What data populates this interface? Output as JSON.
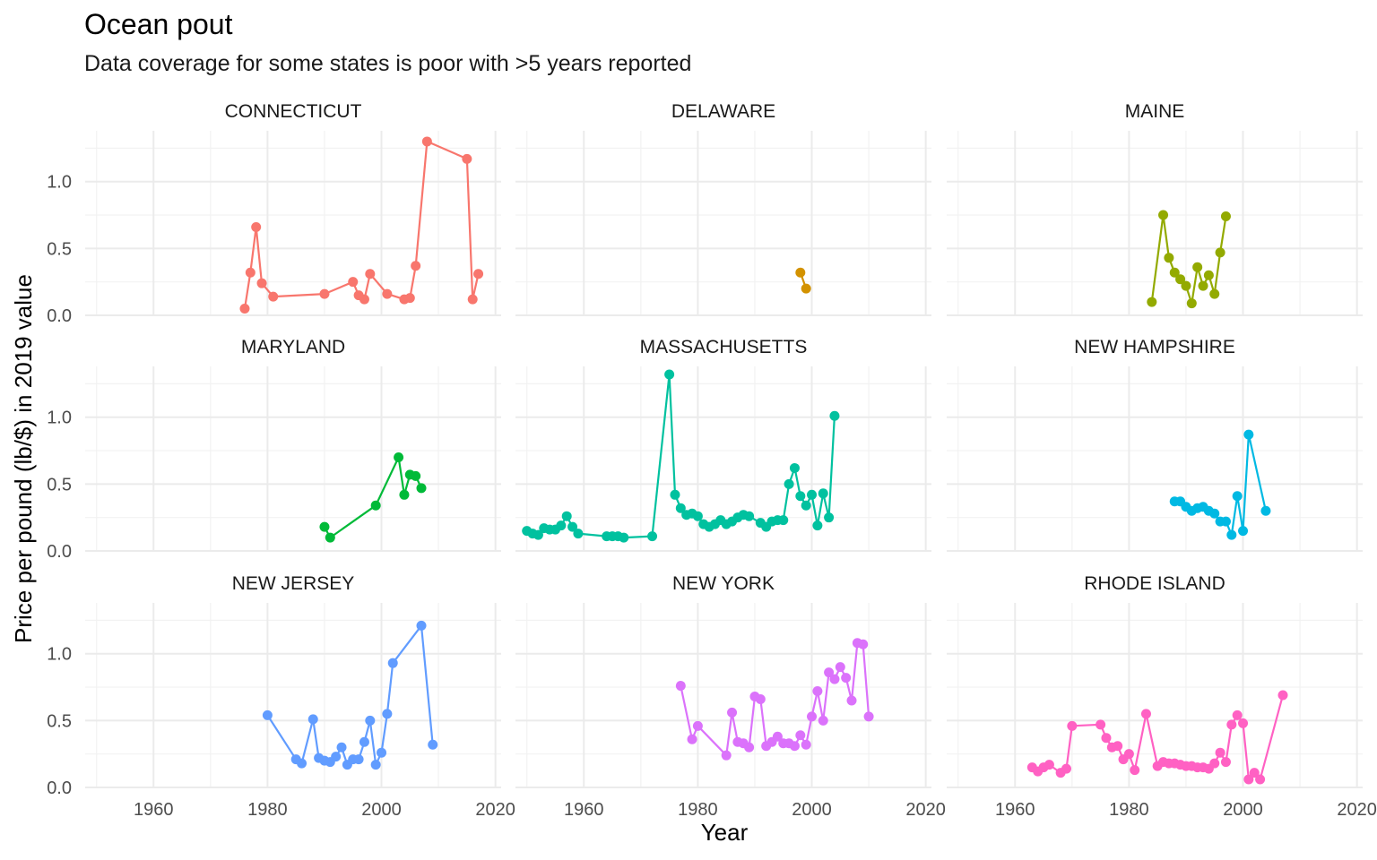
{
  "chart_data": {
    "type": "line",
    "title": "Ocean pout",
    "subtitle": "Data coverage for some states is poor with >5 years reported",
    "xlabel": "Year",
    "ylabel": "Price per pound (lb/$) in 2019 value",
    "xlim": [
      1948,
      2021
    ],
    "ylim": [
      0,
      1.38
    ],
    "x_ticks": [
      1960,
      1980,
      2000,
      2020
    ],
    "y_ticks": [
      0.0,
      0.5,
      1.0
    ],
    "y_tick_labels": [
      "0.0",
      "0.5",
      "1.0"
    ],
    "grid": true,
    "legend": "none",
    "panels": [
      {
        "name": "CONNECTICUT",
        "color": "#F8766D",
        "points": [
          [
            1976,
            0.05
          ],
          [
            1977,
            0.32
          ],
          [
            1978,
            0.66
          ],
          [
            1979,
            0.24
          ],
          [
            1981,
            0.14
          ],
          [
            1990,
            0.16
          ],
          [
            1995,
            0.25
          ],
          [
            1996,
            0.15
          ],
          [
            1997,
            0.12
          ],
          [
            1998,
            0.31
          ],
          [
            2001,
            0.16
          ],
          [
            2004,
            0.12
          ],
          [
            2005,
            0.13
          ],
          [
            2006,
            0.37
          ],
          [
            2008,
            1.3
          ],
          [
            2015,
            1.17
          ],
          [
            2016,
            0.12
          ],
          [
            2017,
            0.31
          ]
        ]
      },
      {
        "name": "DELAWARE",
        "color": "#D39200",
        "points": [
          [
            1998,
            0.32
          ],
          [
            1999,
            0.2
          ]
        ]
      },
      {
        "name": "MAINE",
        "color": "#93AA00",
        "points": [
          [
            1984,
            0.1
          ],
          [
            1986,
            0.75
          ],
          [
            1987,
            0.43
          ],
          [
            1988,
            0.32
          ],
          [
            1989,
            0.27
          ],
          [
            1990,
            0.22
          ],
          [
            1991,
            0.09
          ],
          [
            1992,
            0.36
          ],
          [
            1993,
            0.22
          ],
          [
            1994,
            0.3
          ],
          [
            1995,
            0.16
          ],
          [
            1996,
            0.47
          ],
          [
            1997,
            0.74
          ]
        ]
      },
      {
        "name": "MARYLAND",
        "color": "#00BA38",
        "points": [
          [
            1990,
            0.18
          ],
          [
            1991,
            0.1
          ],
          [
            1999,
            0.34
          ],
          [
            2003,
            0.7
          ],
          [
            2004,
            0.42
          ],
          [
            2005,
            0.57
          ],
          [
            2006,
            0.56
          ],
          [
            2007,
            0.47
          ]
        ]
      },
      {
        "name": "MASSACHUSETTS",
        "color": "#00C19F",
        "points": [
          [
            1950,
            0.15
          ],
          [
            1951,
            0.13
          ],
          [
            1952,
            0.12
          ],
          [
            1953,
            0.17
          ],
          [
            1954,
            0.16
          ],
          [
            1955,
            0.16
          ],
          [
            1956,
            0.19
          ],
          [
            1957,
            0.26
          ],
          [
            1958,
            0.18
          ],
          [
            1959,
            0.13
          ],
          [
            1964,
            0.11
          ],
          [
            1965,
            0.11
          ],
          [
            1966,
            0.11
          ],
          [
            1967,
            0.1
          ],
          [
            1972,
            0.11
          ],
          [
            1975,
            1.32
          ],
          [
            1976,
            0.42
          ],
          [
            1977,
            0.32
          ],
          [
            1978,
            0.27
          ],
          [
            1979,
            0.28
          ],
          [
            1980,
            0.26
          ],
          [
            1981,
            0.2
          ],
          [
            1982,
            0.18
          ],
          [
            1983,
            0.2
          ],
          [
            1984,
            0.23
          ],
          [
            1985,
            0.2
          ],
          [
            1986,
            0.22
          ],
          [
            1987,
            0.25
          ],
          [
            1988,
            0.27
          ],
          [
            1989,
            0.26
          ],
          [
            1991,
            0.21
          ],
          [
            1992,
            0.18
          ],
          [
            1993,
            0.22
          ],
          [
            1994,
            0.23
          ],
          [
            1995,
            0.23
          ],
          [
            1996,
            0.5
          ],
          [
            1997,
            0.62
          ],
          [
            1998,
            0.41
          ],
          [
            1999,
            0.34
          ],
          [
            2000,
            0.42
          ],
          [
            2001,
            0.19
          ],
          [
            2002,
            0.43
          ],
          [
            2003,
            0.25
          ],
          [
            2004,
            1.01
          ]
        ]
      },
      {
        "name": "NEW HAMPSHIRE",
        "color": "#00B9E3",
        "points": [
          [
            1988,
            0.37
          ],
          [
            1989,
            0.37
          ],
          [
            1990,
            0.33
          ],
          [
            1991,
            0.3
          ],
          [
            1992,
            0.32
          ],
          [
            1993,
            0.33
          ],
          [
            1994,
            0.3
          ],
          [
            1995,
            0.28
          ],
          [
            1996,
            0.22
          ],
          [
            1997,
            0.22
          ],
          [
            1998,
            0.12
          ],
          [
            1999,
            0.41
          ],
          [
            2000,
            0.15
          ],
          [
            2001,
            0.87
          ],
          [
            2004,
            0.3
          ]
        ]
      },
      {
        "name": "NEW JERSEY",
        "color": "#619CFF",
        "points": [
          [
            1980,
            0.54
          ],
          [
            1985,
            0.21
          ],
          [
            1986,
            0.18
          ],
          [
            1988,
            0.51
          ],
          [
            1989,
            0.22
          ],
          [
            1990,
            0.2
          ],
          [
            1991,
            0.19
          ],
          [
            1992,
            0.23
          ],
          [
            1993,
            0.3
          ],
          [
            1994,
            0.17
          ],
          [
            1995,
            0.21
          ],
          [
            1996,
            0.21
          ],
          [
            1997,
            0.34
          ],
          [
            1998,
            0.5
          ],
          [
            1999,
            0.17
          ],
          [
            2000,
            0.26
          ],
          [
            2001,
            0.55
          ],
          [
            2002,
            0.93
          ],
          [
            2007,
            1.21
          ],
          [
            2009,
            0.32
          ]
        ]
      },
      {
        "name": "NEW YORK",
        "color": "#DB72FB",
        "points": [
          [
            1977,
            0.76
          ],
          [
            1979,
            0.36
          ],
          [
            1980,
            0.46
          ],
          [
            1985,
            0.24
          ],
          [
            1986,
            0.56
          ],
          [
            1987,
            0.34
          ],
          [
            1988,
            0.33
          ],
          [
            1989,
            0.3
          ],
          [
            1990,
            0.68
          ],
          [
            1991,
            0.66
          ],
          [
            1992,
            0.31
          ],
          [
            1993,
            0.34
          ],
          [
            1994,
            0.38
          ],
          [
            1995,
            0.33
          ],
          [
            1996,
            0.33
          ],
          [
            1997,
            0.31
          ],
          [
            1998,
            0.39
          ],
          [
            1999,
            0.32
          ],
          [
            2000,
            0.53
          ],
          [
            2001,
            0.72
          ],
          [
            2002,
            0.5
          ],
          [
            2003,
            0.86
          ],
          [
            2004,
            0.81
          ],
          [
            2005,
            0.9
          ],
          [
            2006,
            0.82
          ],
          [
            2007,
            0.65
          ],
          [
            2008,
            1.08
          ],
          [
            2009,
            1.07
          ],
          [
            2010,
            0.53
          ]
        ]
      },
      {
        "name": "RHODE ISLAND",
        "color": "#FF61C3",
        "points": [
          [
            1963,
            0.15
          ],
          [
            1964,
            0.12
          ],
          [
            1965,
            0.15
          ],
          [
            1966,
            0.17
          ],
          [
            1968,
            0.11
          ],
          [
            1969,
            0.14
          ],
          [
            1970,
            0.46
          ],
          [
            1975,
            0.47
          ],
          [
            1976,
            0.37
          ],
          [
            1977,
            0.3
          ],
          [
            1978,
            0.31
          ],
          [
            1979,
            0.21
          ],
          [
            1980,
            0.25
          ],
          [
            1981,
            0.13
          ],
          [
            1983,
            0.55
          ],
          [
            1985,
            0.16
          ],
          [
            1986,
            0.19
          ],
          [
            1987,
            0.18
          ],
          [
            1988,
            0.18
          ],
          [
            1989,
            0.17
          ],
          [
            1990,
            0.16
          ],
          [
            1991,
            0.16
          ],
          [
            1992,
            0.15
          ],
          [
            1993,
            0.15
          ],
          [
            1994,
            0.14
          ],
          [
            1995,
            0.18
          ],
          [
            1996,
            0.26
          ],
          [
            1997,
            0.19
          ],
          [
            1998,
            0.47
          ],
          [
            1999,
            0.54
          ],
          [
            2000,
            0.48
          ],
          [
            2001,
            0.06
          ],
          [
            2002,
            0.11
          ],
          [
            2003,
            0.06
          ],
          [
            2007,
            0.69
          ]
        ]
      }
    ]
  }
}
